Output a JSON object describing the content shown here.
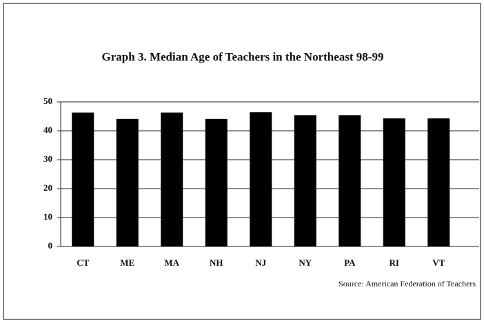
{
  "chart_data": {
    "type": "bar",
    "title": "Graph 3. Median Age of Teachers in the Northeast 98-99",
    "categories": [
      "CT",
      "ME",
      "MA",
      "NH",
      "NJ",
      "NY",
      "PA",
      "RI",
      "VT"
    ],
    "values": [
      46.3,
      44.1,
      46.3,
      44.1,
      46.4,
      45.4,
      45.4,
      44.3,
      44.3
    ],
    "color": "#000000",
    "ylim": [
      0,
      50
    ],
    "yticks": [
      0,
      10,
      20,
      30,
      40,
      50
    ],
    "grid": true,
    "source": "Source: American Federation of Teachers"
  }
}
